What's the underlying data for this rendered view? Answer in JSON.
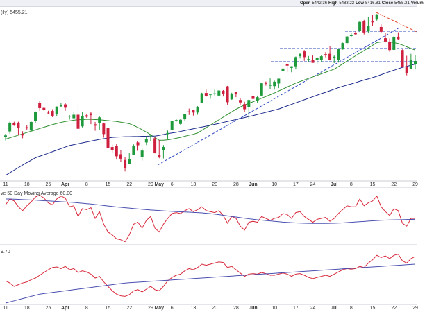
{
  "header": {
    "items": [
      {
        "label": "Open",
        "value": "5442.36"
      },
      {
        "label": "High",
        "value": "5483.22"
      },
      {
        "label": "Low",
        "value": "5416.81"
      },
      {
        "label": "Close",
        "value": "5455.21"
      },
      {
        "label": "Volum"
      }
    ]
  },
  "chart_data": [
    {
      "type": "candlestick",
      "title": "(ily) 5455.21",
      "categories": [
        "11",
        null,
        null,
        null,
        null,
        "18",
        null,
        null,
        null,
        null,
        "25",
        null,
        null,
        null,
        "Apr",
        null,
        null,
        null,
        null,
        "8",
        null,
        null,
        null,
        null,
        "15",
        null,
        null,
        null,
        null,
        "22",
        null,
        null,
        null,
        null,
        "29",
        null,
        "May",
        null,
        null,
        "6",
        null,
        null,
        null,
        null,
        "13",
        null,
        null,
        null,
        null,
        "20",
        null,
        null,
        null,
        null,
        "28",
        null,
        null,
        null,
        "Jun",
        null,
        null,
        null,
        null,
        "10",
        null,
        null,
        null,
        null,
        "17",
        null,
        null,
        null,
        "24",
        null,
        null,
        null,
        null,
        "Jul",
        null,
        null,
        null,
        "8",
        null,
        null,
        null,
        null,
        "15",
        null,
        null,
        null,
        null,
        "22",
        null,
        null,
        null,
        null,
        "29"
      ],
      "open": [
        5111,
        5135,
        5173,
        5175,
        5124,
        5154,
        5139,
        5181,
        5266,
        5242,
        5220,
        5228,
        5213,
        5249,
        5258,
        5204,
        5195,
        5211,
        5158,
        5208,
        5217,
        5167,
        5173,
        5171,
        5150,
        5064,
        5068,
        5031,
        5005,
        4988,
        5028,
        5085,
        5019,
        5085,
        5116,
        5104,
        5029,
        5050,
        5123,
        5143,
        5186,
        5169,
        5190,
        5226,
        5234,
        5221,
        5263,
        5310,
        5301,
        5305,
        5298,
        5320,
        5340,
        5281,
        5316,
        5278,
        5259,
        5244,
        5297,
        5275,
        5298,
        5358,
        5343,
        5341,
        5353,
        5409,
        5441,
        5424,
        5431,
        5477,
        5499,
        5459,
        5460,
        5460,
        5460,
        5486,
        5488,
        5471,
        5461,
        5508,
        5537,
        5569,
        5584,
        5591,
        5635,
        5590,
        5638,
        5644,
        5610,
        5559,
        5543,
        5506,
        5566,
        5505,
        5428,
        5419,
        5442.36
      ],
      "high": [
        5124,
        5179,
        5179,
        5179,
        5136,
        5164,
        5180,
        5226,
        5272,
        5246,
        5229,
        5236,
        5249,
        5264,
        5263,
        5209,
        5222,
        5256,
        5222,
        5216,
        5224,
        5178,
        5204,
        5175,
        5168,
        5075,
        5077,
        5050,
        5019,
        5038,
        5076,
        5089,
        5057,
        5114,
        5123,
        5110,
        5096,
        5073,
        5139,
        5181,
        5192,
        5191,
        5214,
        5239,
        5234,
        5250,
        5311,
        5325,
        5305,
        5325,
        5323,
        5323,
        5342,
        5311,
        5316,
        5288,
        5270,
        5280,
        5302,
        5298,
        5354,
        5362,
        5376,
        5366,
        5375,
        5447,
        5442,
        5432,
        5476,
        5490,
        5505,
        5478,
        5480,
        5473,
        5483,
        5496,
        5524,
        5480,
        5510,
        5539,
        5570,
        5583,
        5590,
        5635,
        5642,
        5655,
        5666,
        5669,
        5622,
        5584,
        5558,
        5569,
        5586,
        5508,
        5479,
        5488,
        5483.22
      ],
      "low": [
        5094,
        5125,
        5160,
        5118,
        5104,
        5142,
        5137,
        5172,
        5229,
        5229,
        5213,
        5200,
        5205,
        5247,
        5229,
        5189,
        5190,
        5146,
        5153,
        5197,
        5168,
        5138,
        5140,
        5107,
        5052,
        5039,
        5007,
        4998,
        4953,
        4987,
        5028,
        5047,
        5002,
        5073,
        5089,
        5035,
        5013,
        5012,
        5102,
        5142,
        5179,
        5165,
        5183,
        5210,
        5207,
        5211,
        5263,
        5293,
        5284,
        5299,
        5294,
        5294,
        5257,
        5279,
        5291,
        5257,
        5222,
        5191,
        5234,
        5265,
        5297,
        5343,
        5328,
        5325,
        5332,
        5404,
        5404,
        5404,
        5417,
        5467,
        5456,
        5453,
        5447,
        5441,
        5451,
        5472,
        5458,
        5446,
        5448,
        5507,
        5530,
        5562,
        5574,
        5587,
        5576,
        5583,
        5614,
        5639,
        5584,
        5540,
        5497,
        5505,
        5553,
        5426,
        5390,
        5418,
        5416.81
      ],
      "close": [
        5117,
        5175,
        5165,
        5150,
        5117,
        5149,
        5178,
        5224,
        5241,
        5234,
        5218,
        5203,
        5248,
        5254,
        5243,
        5205,
        5211,
        5147,
        5204,
        5202,
        5209,
        5161,
        5199,
        5123,
        5061,
        5051,
        5022,
        5011,
        4967,
        5010,
        5070,
        5072,
        5048,
        5100,
        5116,
        5036,
        5018,
        5064,
        5128,
        5181,
        5187,
        5188,
        5214,
        5223,
        5221,
        5247,
        5308,
        5297,
        5303,
        5308,
        5321,
        5307,
        5268,
        5305,
        5306,
        5267,
        5236,
        5278,
        5283,
        5291,
        5354,
        5352,
        5347,
        5361,
        5375,
        5421,
        5434,
        5431,
        5473,
        5487,
        5473,
        5464,
        5447,
        5469,
        5477,
        5482,
        5460,
        5475,
        5509,
        5537,
        5567,
        5572,
        5577,
        5633,
        5585,
        5615,
        5631,
        5667,
        5588,
        5544,
        5505,
        5564,
        5555,
        5427,
        5399,
        5459,
        5455.21
      ],
      "up_color": "#1e9a3c",
      "down_color": "#cf1f3e",
      "lines": [
        {
          "color": "#2f8f2f",
          "values": [
            5100,
            5106,
            5112,
            5118,
            5124,
            5130,
            5136,
            5142,
            5148,
            5154,
            5160,
            5166,
            5171,
            5176,
            5180,
            5183,
            5186,
            5188,
            5189,
            5190,
            5190,
            5189,
            5188,
            5186,
            5184,
            5182,
            5180,
            5177,
            5174,
            5170,
            5162,
            5153,
            5143,
            5132,
            5120,
            5107,
            5095,
            5095,
            5097,
            5100,
            5104,
            5108,
            5113,
            5118,
            5122,
            5128,
            5140,
            5152,
            5164,
            5176,
            5188,
            5200,
            5212,
            5224,
            5236,
            5246,
            5255,
            5263,
            5270,
            5278,
            5286,
            5294,
            5302,
            5310,
            5319,
            5328,
            5337,
            5346,
            5355,
            5362,
            5369,
            5376,
            5383,
            5390,
            5397,
            5404,
            5411,
            5418,
            5430,
            5442,
            5455,
            5467,
            5479,
            5491,
            5503,
            5515,
            5527,
            5539,
            5542,
            5543,
            5542,
            5539,
            5535,
            5528,
            5520,
            5512,
            5505
          ]
        },
        {
          "color": "#1c2a8c",
          "values": [
            4935,
            4947,
            4959,
            4970,
            4982,
            4993,
            5004,
            5015,
            5022,
            5029,
            5036,
            5043,
            5050,
            5057,
            5064,
            5071,
            5075,
            5079,
            5083,
            5087,
            5091,
            5095,
            5099,
            5102,
            5105,
            5108,
            5109,
            5110,
            5111,
            5111,
            5112,
            5112,
            5113,
            5113,
            5114,
            5114,
            5117,
            5121,
            5125,
            5128,
            5131,
            5135,
            5139,
            5143,
            5147,
            5151,
            5155,
            5159,
            5163,
            5167,
            5171,
            5176,
            5180,
            5185,
            5189,
            5194,
            5198,
            5203,
            5207,
            5212,
            5217,
            5222,
            5227,
            5232,
            5237,
            5244,
            5251,
            5258,
            5265,
            5272,
            5279,
            5286,
            5293,
            5300,
            5307,
            5313,
            5320,
            5327,
            5334,
            5340,
            5346,
            5351,
            5357,
            5363,
            5369,
            5374,
            5380,
            5386,
            5393,
            5400,
            5407,
            5413,
            5420,
            5426,
            5431,
            5436,
            5441
          ]
        }
      ],
      "ylim": [
        4916,
        5695
      ]
    },
    {
      "type": "line",
      "title": "ve 50 Day Moving Average 60.00",
      "series": [
        {
          "color": "#d8283a",
          "values": [
            64,
            70,
            68,
            62,
            58,
            63,
            67,
            72,
            74,
            71,
            66,
            64,
            70,
            73,
            71,
            62,
            63,
            52,
            60,
            59,
            61,
            50,
            57,
            44,
            36,
            33,
            29,
            28,
            26,
            33,
            44,
            46,
            40,
            48,
            52,
            40,
            36,
            44,
            50,
            55,
            56,
            55,
            58,
            60,
            57,
            59,
            62,
            58,
            57,
            56,
            58,
            53,
            45,
            52,
            50,
            42,
            38,
            46,
            47,
            46,
            52,
            50,
            48,
            50,
            51,
            55,
            54,
            50,
            56,
            57,
            52,
            49,
            46,
            49,
            50,
            51,
            47,
            50,
            55,
            59,
            63,
            62,
            62,
            70,
            63,
            66,
            68,
            73,
            62,
            57,
            53,
            60,
            58,
            45,
            42,
            50,
            50
          ]
        },
        {
          "color": "#4a4fb0",
          "values": [
            70,
            70,
            69.8,
            69.6,
            69.4,
            69.2,
            69,
            68.8,
            68.5,
            68.2,
            68,
            67.8,
            67.5,
            67.2,
            67,
            66.7,
            66.4,
            66,
            65.6,
            65.2,
            64.8,
            64.3,
            63.8,
            63.3,
            62.8,
            62.3,
            61.8,
            61.4,
            61,
            60.6,
            60.2,
            59.8,
            59.4,
            59,
            58.7,
            58.4,
            58.1,
            57.8,
            57.5,
            57.2,
            57,
            56.8,
            56.6,
            56.4,
            56.2,
            56,
            55.7,
            55.3,
            54.9,
            54.4,
            53.8,
            53.2,
            52.6,
            52,
            51.4,
            50.8,
            50.2,
            49.6,
            49.1,
            48.6,
            48.2,
            47.8,
            47.4,
            47,
            46.6,
            46.2,
            45.9,
            45.6,
            45.4,
            45.2,
            45,
            44.9,
            44.8,
            44.8,
            44.8,
            44.8,
            44.9,
            45,
            45.2,
            45.4,
            45.7,
            46,
            46.3,
            46.6,
            46.9,
            47.2,
            47.5,
            47.8,
            48,
            48.2,
            48.4,
            48.5,
            48.6,
            48.7,
            48.8,
            48.9,
            49
          ]
        }
      ],
      "ylim": [
        25,
        80
      ]
    },
    {
      "type": "line",
      "title": "9.70",
      "categories": [
        "11",
        null,
        null,
        null,
        null,
        "18",
        null,
        null,
        null,
        null,
        "25",
        null,
        null,
        null,
        "Apr",
        null,
        null,
        null,
        null,
        "8",
        null,
        null,
        null,
        null,
        "15",
        null,
        null,
        null,
        null,
        "22",
        null,
        null,
        null,
        null,
        "29",
        null,
        "May",
        null,
        null,
        "6",
        null,
        null,
        null,
        null,
        "13",
        null,
        null,
        null,
        null,
        "20",
        null,
        null,
        null,
        null,
        "28",
        null,
        null,
        null,
        "Jun",
        null,
        null,
        null,
        null,
        "10",
        null,
        null,
        null,
        null,
        "17",
        null,
        null,
        null,
        "24",
        null,
        null,
        null,
        null,
        "Jul",
        null,
        null,
        null,
        "8",
        null,
        null,
        null,
        null,
        "15",
        null,
        null,
        null,
        null,
        "22",
        null,
        null,
        null,
        null,
        "29"
      ],
      "series": [
        {
          "color": "#d8283a",
          "values": [
            40,
            36,
            30,
            33,
            36,
            38,
            42,
            45,
            50,
            55,
            60,
            64,
            65,
            62,
            66,
            60,
            62,
            55,
            58,
            56,
            52,
            45,
            48,
            38,
            30,
            22,
            16,
            13,
            12,
            15,
            22,
            24,
            20,
            25,
            30,
            24,
            22,
            30,
            40,
            46,
            50,
            52,
            58,
            62,
            60,
            64,
            70,
            68,
            70,
            72,
            74,
            73,
            64,
            66,
            60,
            54,
            48,
            52,
            53,
            52,
            55,
            53,
            50,
            50,
            52,
            54,
            52,
            48,
            52,
            53,
            50,
            46,
            44,
            46,
            48,
            50,
            48,
            52,
            56,
            60,
            62,
            61,
            62,
            66,
            64,
            72,
            78,
            86,
            82,
            85,
            80,
            86,
            88,
            76,
            72,
            80,
            84
          ]
        },
        {
          "color": "#4a4fb0",
          "values": [
            0,
            2,
            4,
            6,
            8,
            10,
            12,
            14,
            16,
            17,
            18,
            19,
            20,
            21,
            22,
            23,
            24,
            25,
            26,
            27,
            28,
            29,
            30,
            31,
            32,
            33,
            34,
            35,
            36,
            36.5,
            37,
            37.5,
            38,
            38.5,
            39,
            39.5,
            40,
            40.5,
            41,
            41.5,
            42,
            42.5,
            43,
            43.5,
            44,
            44.5,
            45,
            45.5,
            46,
            46.5,
            47,
            47.5,
            48,
            48.5,
            49,
            49.5,
            50,
            50.5,
            51,
            51.5,
            52,
            52.5,
            53,
            53.5,
            54,
            54.5,
            55,
            55.5,
            56,
            56.5,
            57,
            57.5,
            58,
            58.5,
            59,
            59.5,
            60,
            60.5,
            61,
            61.5,
            62,
            62.5,
            63,
            63.5,
            64,
            64.5,
            65,
            65.5,
            66,
            66.5,
            67,
            67.5,
            68,
            68.5,
            69,
            69.5,
            70
          ]
        }
      ],
      "ylim": [
        0,
        100
      ]
    }
  ]
}
